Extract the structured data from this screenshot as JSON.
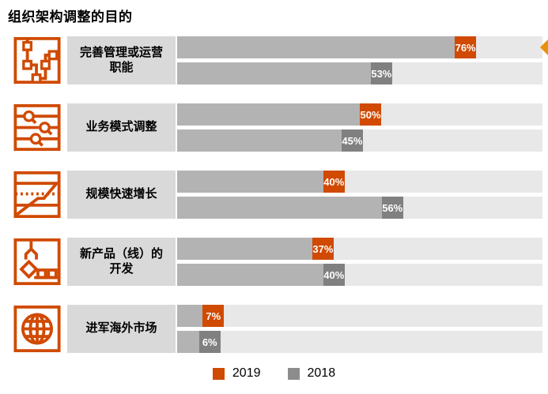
{
  "title": "组织架构调整的目的",
  "colors": {
    "accent_orange": "#D04A02",
    "arrow_orange": "#E8920A",
    "bar_fill_gray": "#b3b3b3",
    "value_box_gray": "#808080",
    "track_gray": "#e8e8e8",
    "label_bg_gray": "#d9d9d9",
    "legend_gray": "#8c8c8c"
  },
  "legend": [
    {
      "label": "2019",
      "color": "#D04A02"
    },
    {
      "label": "2018",
      "color": "#8c8c8c"
    }
  ],
  "marker": {
    "shape": "left-pointing-triangle",
    "color": "#E8920A",
    "target": "完善管理或运营职能 2019 bar, right edge"
  },
  "rows": [
    {
      "icon": "flow-nodes-icon",
      "label": "完善管理或运营职能",
      "y2019": {
        "pct": 76,
        "text": "76%"
      },
      "y2018": {
        "pct": 53,
        "text": "53%"
      }
    },
    {
      "icon": "sliders-icon",
      "label": "业务模式调整",
      "y2019": {
        "pct": 50,
        "text": "50%"
      },
      "y2018": {
        "pct": 45,
        "text": "45%"
      }
    },
    {
      "icon": "growth-chart-icon",
      "label": "规模快速增长",
      "y2019": {
        "pct": 40,
        "text": "40%"
      },
      "y2018": {
        "pct": 56,
        "text": "56%"
      }
    },
    {
      "icon": "crane-icon",
      "label": "新产品（线）的开发",
      "y2019": {
        "pct": 37,
        "text": "37%"
      },
      "y2018": {
        "pct": 40,
        "text": "40%"
      }
    },
    {
      "icon": "globe-icon",
      "label": "进军海外市场",
      "y2019": {
        "pct": 7,
        "text": "7%"
      },
      "y2018": {
        "pct": 6,
        "text": "6%"
      }
    }
  ],
  "chart_data": {
    "type": "bar",
    "orientation": "horizontal",
    "title": "组织架构调整的目的",
    "categories": [
      "完善管理或运营职能",
      "业务模式调整",
      "规模快速增长",
      "新产品（线）的开发",
      "进军海外市场"
    ],
    "series": [
      {
        "name": "2019",
        "color": "#D04A02",
        "values": [
          76,
          50,
          40,
          37,
          7
        ]
      },
      {
        "name": "2018",
        "color": "#808080",
        "values": [
          53,
          45,
          56,
          40,
          6
        ]
      }
    ],
    "value_format": "percent",
    "xlim": [
      0,
      100
    ],
    "grid": false,
    "legend_position": "bottom-center",
    "annotations": [
      "orange left arrow highlighting 完善管理或运营职能 2019 (76%)"
    ]
  }
}
